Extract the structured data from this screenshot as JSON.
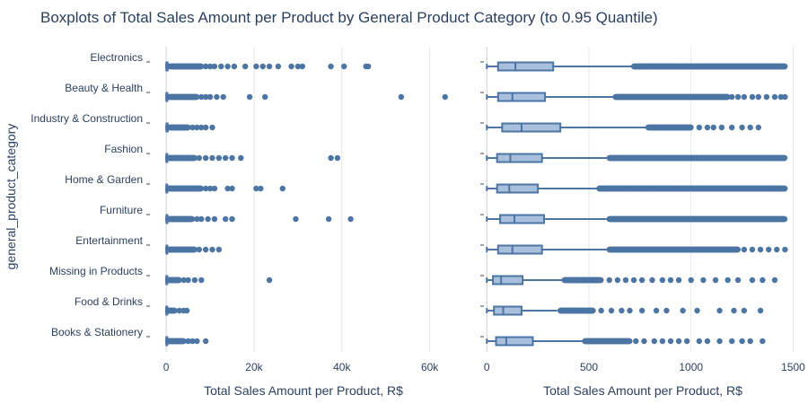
{
  "colors": {
    "accent": "#4c75a3",
    "box_fill": "#a8c0dc",
    "box_line": "#4c75a3",
    "grid": "#e6e6e6",
    "text": "#2a3f5f"
  },
  "chart_data": {
    "type": "boxplot",
    "title": "Boxplots of Total Sales Amount per Product by General Product Category (to 0.95 Quantile)",
    "ylabel": "general_product_category",
    "categories": [
      "Electronics",
      "Beauty & Health",
      "Industry & Construction",
      "Fashion",
      "Home & Garden",
      "Furniture",
      "Entertainment",
      "Missing in Products",
      "Food & Drinks",
      "Books & Stationery"
    ],
    "grid": true,
    "panels": [
      {
        "xlabel": "Total Sales Amount per Product, R$",
        "xlim": [
          -3500,
          66000
        ],
        "xticks": [
          0,
          20000,
          40000,
          60000
        ],
        "xtick_labels": [
          "0",
          "20k",
          "40k",
          "60k"
        ],
        "boxes": [
          {
            "q1": 40,
            "median": 110,
            "q3": 330,
            "whisker_low": 0,
            "whisker_high": 720
          },
          {
            "q1": 40,
            "median": 100,
            "q3": 280,
            "whisker_low": 0,
            "whisker_high": 610
          },
          {
            "q1": 60,
            "median": 170,
            "q3": 360,
            "whisker_low": 0,
            "whisker_high": 770
          },
          {
            "q1": 40,
            "median": 90,
            "q3": 270,
            "whisker_low": 0,
            "whisker_high": 590
          },
          {
            "q1": 40,
            "median": 90,
            "q3": 250,
            "whisker_low": 0,
            "whisker_high": 540
          },
          {
            "q1": 60,
            "median": 130,
            "q3": 280,
            "whisker_low": 0,
            "whisker_high": 600
          },
          {
            "q1": 50,
            "median": 110,
            "q3": 270,
            "whisker_low": 0,
            "whisker_high": 600
          },
          {
            "q1": 30,
            "median": 60,
            "q3": 180,
            "whisker_low": 0,
            "whisker_high": 370
          },
          {
            "q1": 30,
            "median": 70,
            "q3": 170,
            "whisker_low": 0,
            "whisker_high": 360
          },
          {
            "q1": 40,
            "median": 80,
            "q3": 220,
            "whisker_low": 0,
            "whisker_high": 470
          }
        ],
        "outliers": [
          {
            "category": "Electronics",
            "dense_range": [
              800,
              8000
            ],
            "sparse": [
              9000,
              10000,
              11000,
              12500,
              14000,
              15500,
              18000,
              20500,
              22000,
              23500,
              25500,
              28500,
              30000,
              31000,
              37500,
              40500,
              45500,
              46000
            ]
          },
          {
            "category": "Beauty & Health",
            "dense_range": [
              700,
              7000
            ],
            "sparse": [
              8000,
              9000,
              10000,
              11500,
              13000,
              19000,
              22500,
              53500,
              63500
            ]
          },
          {
            "category": "Industry & Construction",
            "dense_range": [
              800,
              5000
            ],
            "sparse": [
              6000,
              7000,
              8000,
              9000,
              10500
            ]
          },
          {
            "category": "Fashion",
            "dense_range": [
              600,
              6500
            ],
            "sparse": [
              7500,
              9000,
              10500,
              12000,
              13500,
              15000,
              17000,
              37500,
              39000
            ]
          },
          {
            "category": "Home & Garden",
            "dense_range": [
              600,
              8000
            ],
            "sparse": [
              9000,
              10000,
              11000,
              14000,
              15000,
              20500,
              21500,
              26500
            ]
          },
          {
            "category": "Furniture",
            "dense_range": [
              600,
              6000
            ],
            "sparse": [
              7000,
              8000,
              9500,
              11000,
              13500,
              15000,
              29500,
              37000,
              42000
            ]
          },
          {
            "category": "Entertainment",
            "dense_range": [
              600,
              6500
            ],
            "sparse": [
              7500,
              9000,
              10500,
              12000
            ]
          },
          {
            "category": "Missing in Products",
            "dense_range": [
              400,
              3000
            ],
            "sparse": [
              4000,
              5000,
              6500,
              8000,
              23500
            ]
          },
          {
            "category": "Food & Drinks",
            "dense_range": [
              400,
              2000
            ],
            "sparse": [
              3000,
              4000,
              4700
            ]
          },
          {
            "category": "Books & Stationery",
            "dense_range": [
              500,
              4000
            ],
            "sparse": [
              5000,
              6000,
              7000,
              9000
            ]
          }
        ]
      },
      {
        "xlabel": "Total Sales Amount per Product, R$",
        "xlim": [
          -10,
          1520
        ],
        "xticks": [
          0,
          500,
          1000,
          1500
        ],
        "xtick_labels": [
          "0",
          "500",
          "1000",
          "1500"
        ],
        "boxes": [
          {
            "q1": 55,
            "median": 140,
            "q3": 325,
            "whisker_low": 0,
            "whisker_high": 715
          },
          {
            "q1": 55,
            "median": 125,
            "q3": 285,
            "whisker_low": 0,
            "whisker_high": 625
          },
          {
            "q1": 75,
            "median": 170,
            "q3": 360,
            "whisker_low": 0,
            "whisker_high": 780
          },
          {
            "q1": 50,
            "median": 115,
            "q3": 270,
            "whisker_low": 0,
            "whisker_high": 590
          },
          {
            "q1": 50,
            "median": 110,
            "q3": 250,
            "whisker_low": 0,
            "whisker_high": 545
          },
          {
            "q1": 65,
            "median": 135,
            "q3": 280,
            "whisker_low": 0,
            "whisker_high": 595
          },
          {
            "q1": 55,
            "median": 125,
            "q3": 270,
            "whisker_low": 0,
            "whisker_high": 595
          },
          {
            "q1": 30,
            "median": 70,
            "q3": 175,
            "whisker_low": 0,
            "whisker_high": 375
          },
          {
            "q1": 35,
            "median": 80,
            "q3": 170,
            "whisker_low": 0,
            "whisker_high": 345
          },
          {
            "q1": 45,
            "median": 95,
            "q3": 225,
            "whisker_low": 0,
            "whisker_high": 475
          }
        ],
        "outliers": [
          {
            "category": "Electronics",
            "dense_range": [
              720,
              1460
            ],
            "sparse": []
          },
          {
            "category": "Beauty & Health",
            "dense_range": [
              630,
              1180
            ],
            "sparse": [
              1200,
              1230,
              1260,
              1300,
              1330,
              1370,
              1410,
              1440,
              1460
            ]
          },
          {
            "category": "Industry & Construction",
            "dense_range": [
              790,
              1000
            ],
            "sparse": [
              1040,
              1080,
              1110,
              1150,
              1200,
              1250,
              1290,
              1330
            ]
          },
          {
            "category": "Fashion",
            "dense_range": [
              600,
              1460
            ],
            "sparse": []
          },
          {
            "category": "Home & Garden",
            "dense_range": [
              550,
              1460
            ],
            "sparse": []
          },
          {
            "category": "Furniture",
            "dense_range": [
              600,
              1460
            ],
            "sparse": []
          },
          {
            "category": "Entertainment",
            "dense_range": [
              600,
              1230
            ],
            "sparse": [
              1260,
              1300,
              1340,
              1380,
              1420,
              1460
            ]
          },
          {
            "category": "Missing in Products",
            "dense_range": [
              380,
              560
            ],
            "sparse": [
              600,
              640,
              680,
              720,
              760,
              810,
              860,
              900,
              940,
              1000,
              1060,
              1120,
              1180,
              1230,
              1300,
              1350,
              1410
            ]
          },
          {
            "category": "Food & Drinks",
            "dense_range": [
              360,
              520
            ],
            "sparse": [
              560,
              610,
              660,
              700,
              760,
              830,
              880,
              960,
              1030,
              1140,
              1210,
              1260,
              1340
            ]
          },
          {
            "category": "Books & Stationery",
            "dense_range": [
              480,
              700
            ],
            "sparse": [
              730,
              770,
              820,
              860,
              900,
              940,
              980,
              1040,
              1080,
              1140,
              1200,
              1250,
              1290,
              1350
            ]
          }
        ]
      }
    ]
  }
}
